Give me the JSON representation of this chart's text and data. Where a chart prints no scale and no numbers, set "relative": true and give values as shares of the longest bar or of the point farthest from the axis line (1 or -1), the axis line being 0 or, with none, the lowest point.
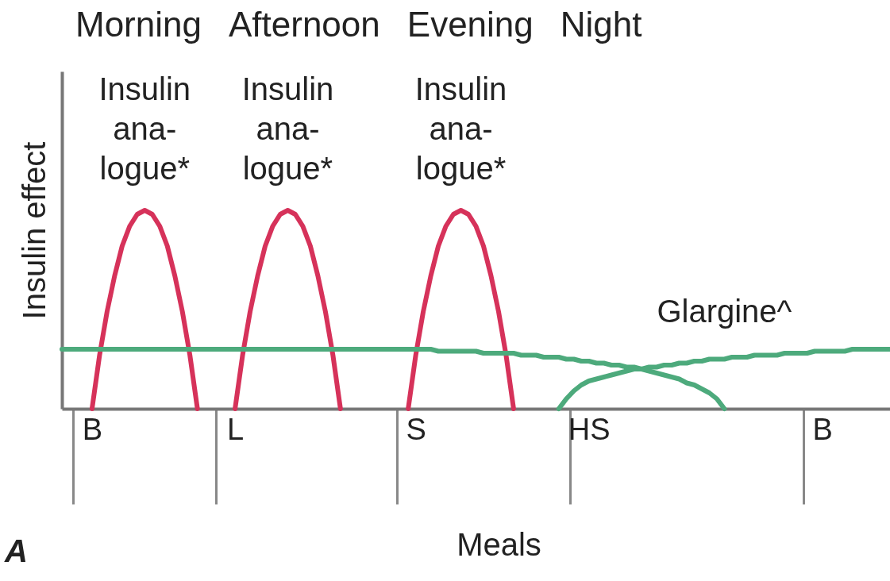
{
  "chart_data": {
    "type": "line",
    "relative": true,
    "title": "A",
    "xlabel": "Meals",
    "ylabel": "Insulin effect",
    "categories": [
      null,
      null,
      null,
      null,
      "B",
      null,
      null,
      null,
      null,
      null,
      null,
      null,
      null,
      null,
      null,
      null,
      null,
      null,
      null,
      null,
      null,
      null,
      null,
      "L",
      null,
      null,
      null,
      null,
      null,
      null,
      null,
      null,
      null,
      null,
      null,
      null,
      null,
      null,
      null,
      null,
      null,
      null,
      null,
      null,
      null,
      null,
      null,
      "S",
      null,
      null,
      null,
      null,
      null,
      null,
      null,
      null,
      null,
      null,
      null,
      null,
      null,
      null,
      null,
      null,
      null,
      null,
      null,
      null,
      null,
      null,
      "HS",
      null,
      null,
      null,
      null,
      null,
      null,
      null,
      null,
      null,
      null,
      null,
      null,
      null,
      null,
      null,
      null,
      null,
      null,
      null,
      null,
      null,
      null,
      null,
      null,
      null,
      null,
      null,
      null,
      null,
      null,
      "B",
      null,
      null,
      null,
      null,
      null,
      null,
      null,
      null,
      null
    ],
    "grid": false,
    "legend": false,
    "marker": "none",
    "line_style": "solid",
    "series": [
      {
        "name": "Insulin\nana-\nlogue*",
        "color": "#d6325a",
        "values": [
          null,
          null,
          null,
          null,
          0,
          0.27,
          0.49,
          0.67,
          0.82,
          0.92,
          0.98,
          1,
          0.98,
          0.92,
          0.82,
          0.67,
          0.49,
          0.27,
          0,
          null,
          null,
          null,
          null,
          null,
          null,
          null,
          null,
          null,
          null,
          null,
          null,
          null,
          null,
          null,
          null,
          null,
          null,
          null,
          null,
          null,
          null,
          null,
          null,
          null,
          null,
          null,
          null,
          null,
          null,
          null,
          null,
          null,
          null,
          null,
          null,
          null,
          null,
          null,
          null,
          null,
          null,
          null,
          null,
          null,
          null,
          null,
          null,
          null,
          null,
          null,
          null,
          null,
          null,
          null,
          null,
          null,
          null,
          null,
          null,
          null,
          null,
          null,
          null,
          null,
          null,
          null,
          null,
          null,
          null,
          null,
          null,
          null,
          null,
          null,
          null,
          null,
          null,
          null,
          null,
          null,
          null,
          null,
          null,
          null,
          null,
          null,
          null,
          null,
          null,
          null,
          null
        ]
      },
      {
        "name": "Insulin\nana-\nlogue*",
        "color": "#d6325a",
        "values": [
          null,
          null,
          null,
          null,
          null,
          null,
          null,
          null,
          null,
          null,
          null,
          null,
          null,
          null,
          null,
          null,
          null,
          null,
          null,
          null,
          null,
          null,
          null,
          0,
          0.27,
          0.49,
          0.67,
          0.82,
          0.92,
          0.98,
          1,
          0.98,
          0.92,
          0.82,
          0.67,
          0.49,
          0.27,
          0,
          null,
          null,
          null,
          null,
          null,
          null,
          null,
          null,
          null,
          null,
          null,
          null,
          null,
          null,
          null,
          null,
          null,
          null,
          null,
          null,
          null,
          null,
          null,
          null,
          null,
          null,
          null,
          null,
          null,
          null,
          null,
          null,
          null,
          null,
          null,
          null,
          null,
          null,
          null,
          null,
          null,
          null,
          null,
          null,
          null,
          null,
          null,
          null,
          null,
          null,
          null,
          null,
          null,
          null,
          null,
          null,
          null,
          null,
          null,
          null,
          null,
          null,
          null,
          null,
          null,
          null,
          null,
          null,
          null,
          null,
          null,
          null,
          null
        ]
      },
      {
        "name": "Insulin\nana-\nlogue*",
        "color": "#d6325a",
        "values": [
          null,
          null,
          null,
          null,
          null,
          null,
          null,
          null,
          null,
          null,
          null,
          null,
          null,
          null,
          null,
          null,
          null,
          null,
          null,
          null,
          null,
          null,
          null,
          null,
          null,
          null,
          null,
          null,
          null,
          null,
          null,
          null,
          null,
          null,
          null,
          null,
          null,
          null,
          null,
          null,
          null,
          null,
          null,
          null,
          null,
          null,
          0,
          0.27,
          0.49,
          0.67,
          0.82,
          0.92,
          0.98,
          1,
          0.98,
          0.92,
          0.82,
          0.67,
          0.49,
          0.27,
          0,
          null,
          null,
          null,
          null,
          null,
          null,
          null,
          null,
          null,
          null,
          null,
          null,
          null,
          null,
          null,
          null,
          null,
          null,
          null,
          null,
          null,
          null,
          null,
          null,
          null,
          null,
          null,
          null,
          null,
          null,
          null,
          null,
          null,
          null,
          null,
          null,
          null,
          null,
          null,
          null,
          null,
          null,
          null,
          null,
          null,
          null,
          null,
          null,
          null,
          null
        ]
      },
      {
        "name": "Glargine^",
        "color": "#4daa7c",
        "values": [
          0.3,
          0.3,
          0.3,
          0.3,
          0.3,
          0.3,
          0.3,
          0.3,
          0.3,
          0.3,
          0.3,
          0.3,
          0.3,
          0.3,
          0.3,
          0.3,
          0.3,
          0.3,
          0.3,
          0.3,
          0.3,
          0.3,
          0.3,
          0.3,
          0.3,
          0.3,
          0.3,
          0.3,
          0.3,
          0.3,
          0.3,
          0.3,
          0.3,
          0.3,
          0.3,
          0.3,
          0.3,
          0.3,
          0.3,
          0.3,
          0.3,
          0.3,
          0.3,
          0.3,
          0.3,
          0.3,
          0.3,
          0.3,
          0.3,
          0.3,
          0.29,
          0.29,
          0.29,
          0.29,
          0.29,
          0.29,
          0.28,
          0.28,
          0.28,
          0.28,
          0.28,
          0.27,
          0.27,
          0.27,
          0.26,
          0.26,
          0.26,
          0.25,
          0.25,
          0.24,
          0.24,
          0.23,
          0.23,
          0.22,
          0.22,
          0.21,
          0.21,
          0.2,
          0.19,
          0.18,
          0.17,
          0.16,
          0.15,
          0.13,
          0.12,
          0.1,
          0.08,
          0.05,
          0,
          null,
          null,
          null,
          null,
          null,
          null,
          null,
          null,
          null,
          null,
          null,
          null,
          null,
          null,
          null,
          null,
          null,
          null,
          null,
          null,
          null,
          null
        ]
      },
      {
        "color": "#4daa7c",
        "values": [
          null,
          null,
          null,
          null,
          null,
          null,
          null,
          null,
          null,
          null,
          null,
          null,
          null,
          null,
          null,
          null,
          null,
          null,
          null,
          null,
          null,
          null,
          null,
          null,
          null,
          null,
          null,
          null,
          null,
          null,
          null,
          null,
          null,
          null,
          null,
          null,
          null,
          null,
          null,
          null,
          null,
          null,
          null,
          null,
          null,
          null,
          null,
          null,
          null,
          null,
          null,
          null,
          null,
          null,
          null,
          null,
          null,
          null,
          null,
          null,
          null,
          null,
          null,
          null,
          null,
          null,
          0,
          0.05,
          0.09,
          0.12,
          0.14,
          0.15,
          0.16,
          0.17,
          0.18,
          0.19,
          0.2,
          0.2,
          0.21,
          0.21,
          0.22,
          0.22,
          0.23,
          0.23,
          0.24,
          0.24,
          0.25,
          0.25,
          0.25,
          0.26,
          0.26,
          0.26,
          0.27,
          0.27,
          0.27,
          0.27,
          0.28,
          0.28,
          0.28,
          0.28,
          0.29,
          0.29,
          0.29,
          0.29,
          0.29,
          0.3,
          0.3,
          0.3,
          0.3,
          0.3,
          0.3
        ]
      }
    ],
    "annotations": [
      "Morning",
      "Afternoon",
      "Evening",
      "Night"
    ]
  }
}
